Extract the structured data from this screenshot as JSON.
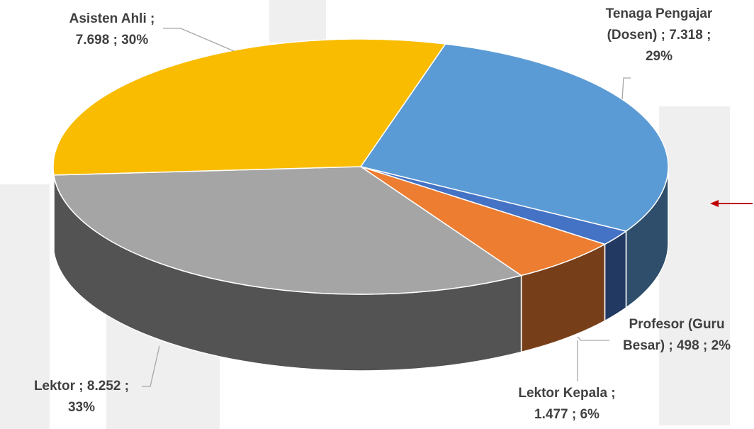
{
  "chart_data": {
    "type": "pie3d",
    "categories": [
      "Tenaga Pengajar (Dosen)",
      "Profesor (Guru Besar)",
      "Lektor Kepala",
      "Lektor",
      "Asisten Ahli"
    ],
    "values": [
      7318,
      498,
      1477,
      8252,
      7698
    ],
    "value_labels": [
      "7.318",
      "498",
      "1.477",
      "8.252",
      "7.698"
    ],
    "percents": [
      29,
      2,
      6,
      33,
      30
    ],
    "percent_labels": [
      "29%",
      "2%",
      "6%",
      "33%",
      "30%"
    ],
    "separator": ";",
    "colors": [
      "#5b9bd5",
      "#4472c4",
      "#ed7d31",
      "#a5a5a5",
      "#f9bc00"
    ]
  }
}
